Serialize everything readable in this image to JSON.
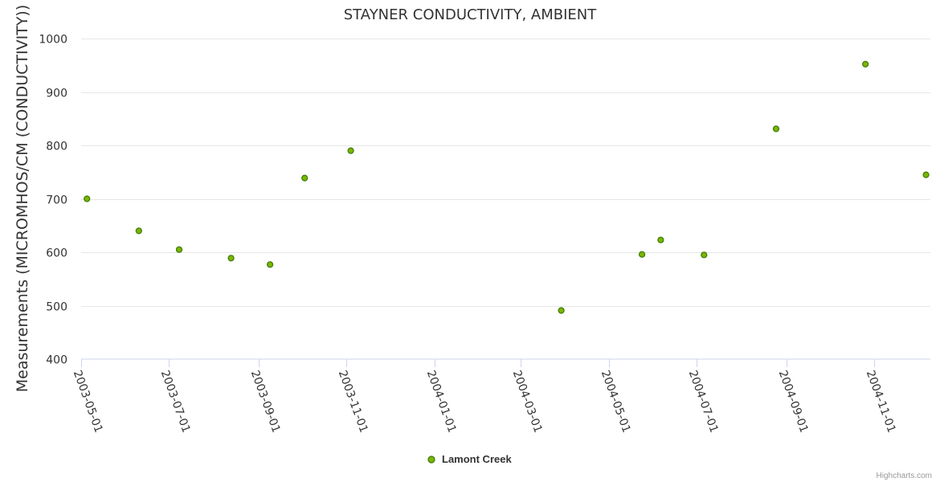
{
  "chart_data": {
    "type": "scatter",
    "title": "STAYNER CONDUCTIVITY, AMBIENT",
    "ylabel": "Measurements (MICROMHOS/CM (CONDUCTIVITY))",
    "xlabel": "",
    "ylim": [
      400,
      1000
    ],
    "yticks": [
      400,
      500,
      600,
      700,
      800,
      900,
      1000
    ],
    "xlim": [
      "2003-05-01",
      "2004-12-10"
    ],
    "xticks": [
      "2003-05-01",
      "2003-07-01",
      "2003-09-01",
      "2003-11-01",
      "2004-01-01",
      "2004-03-01",
      "2004-05-01",
      "2004-07-01",
      "2004-09-01",
      "2004-11-01"
    ],
    "grid": true,
    "legend_position": "bottom-center",
    "series": [
      {
        "name": "Lamont Creek",
        "color": "#7cb500",
        "edge_color": "#3a7a00",
        "points": [
          {
            "x": "2003-05-05",
            "y": 700
          },
          {
            "x": "2003-06-10",
            "y": 640
          },
          {
            "x": "2003-07-08",
            "y": 605
          },
          {
            "x": "2003-08-13",
            "y": 589
          },
          {
            "x": "2003-09-09",
            "y": 577
          },
          {
            "x": "2003-10-03",
            "y": 739
          },
          {
            "x": "2003-11-04",
            "y": 790
          },
          {
            "x": "2004-03-29",
            "y": 491
          },
          {
            "x": "2004-05-24",
            "y": 596
          },
          {
            "x": "2004-06-06",
            "y": 623
          },
          {
            "x": "2004-07-06",
            "y": 595
          },
          {
            "x": "2004-08-25",
            "y": 831
          },
          {
            "x": "2004-10-26",
            "y": 952
          },
          {
            "x": "2004-12-07",
            "y": 745
          }
        ]
      }
    ]
  },
  "credits": "Highcharts.com"
}
